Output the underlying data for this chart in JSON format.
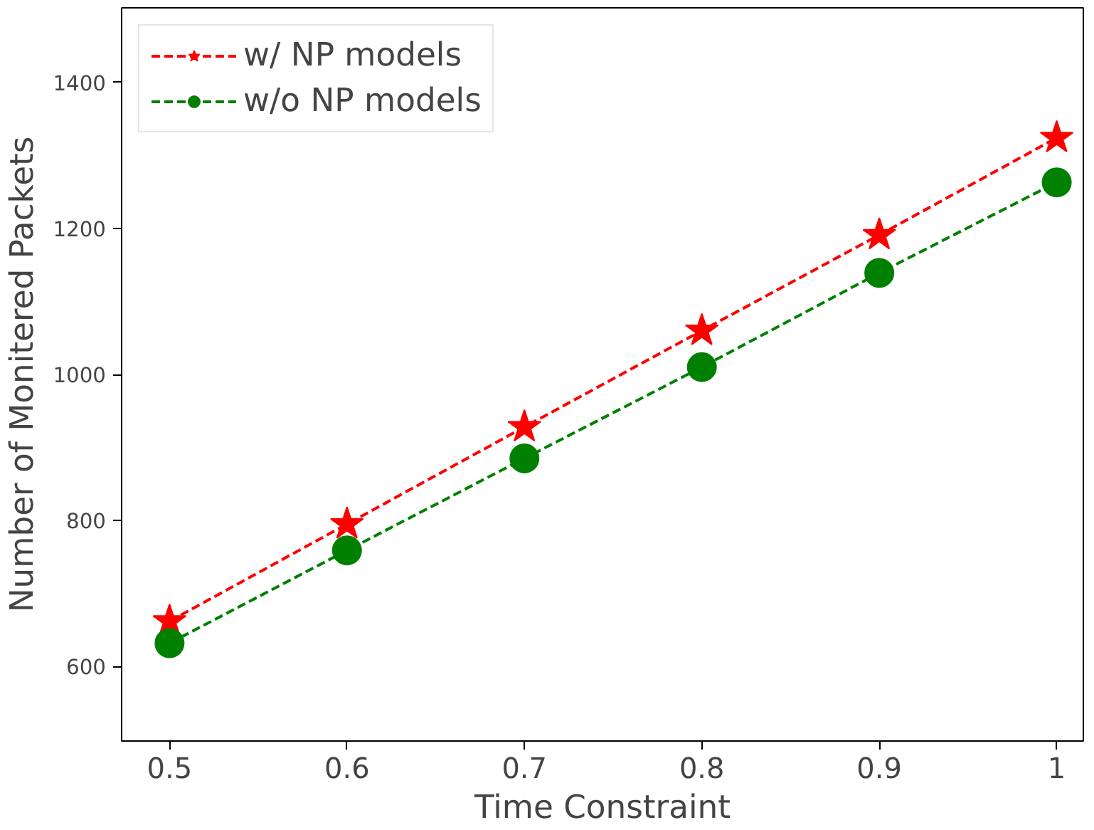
{
  "chart_data": {
    "type": "line",
    "xlabel": "Time Constraint",
    "ylabel": "Number of Monitered Packets",
    "x": [
      0.5,
      0.6,
      0.7,
      0.8,
      0.9,
      1
    ],
    "series": [
      {
        "name": "w/ NP models",
        "color": "#ff0000",
        "marker": "star",
        "line_style": "dashed",
        "values": [
          662,
          795,
          928,
          1060,
          1191,
          1324
        ]
      },
      {
        "name": "w/o NP models",
        "color": "#008000",
        "marker": "circle",
        "line_style": "dashed",
        "values": [
          632,
          759,
          885,
          1010,
          1139,
          1263
        ]
      }
    ],
    "xlim": [
      0.473,
      1.015
    ],
    "ylim": [
      498,
      1502
    ],
    "xticks": [
      0.5,
      0.6,
      0.7,
      0.8,
      0.9,
      {
        "value": 1,
        "label": "1"
      }
    ],
    "yticks": [
      600,
      800,
      1000,
      1200,
      1400
    ],
    "grid": false,
    "legend": "top left"
  }
}
